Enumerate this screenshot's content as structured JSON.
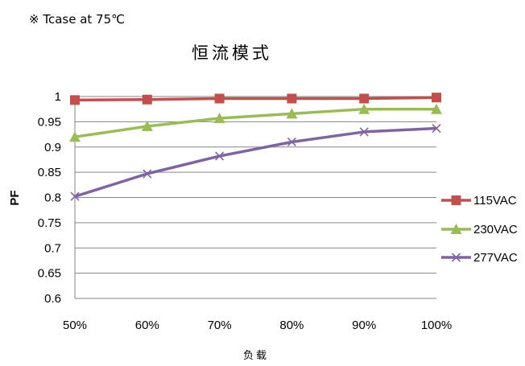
{
  "note": "※ Tcase at 75℃",
  "chart_data": {
    "type": "line",
    "title": "恒流模式",
    "xlabel": "负载",
    "ylabel": "PF",
    "categories": [
      "50%",
      "60%",
      "70%",
      "80%",
      "90%",
      "100%"
    ],
    "ylim": [
      0.6,
      1
    ],
    "yticks": [
      "0.6",
      "0.65",
      "0.7",
      "0.75",
      "0.8",
      "0.85",
      "0.9",
      "0.95",
      "1"
    ],
    "grid": true,
    "legend_position": "right",
    "series": [
      {
        "name": "115VAC",
        "values": [
          0.993,
          0.994,
          0.996,
          0.996,
          0.996,
          0.998
        ],
        "color": "#c0504d",
        "marker": "square"
      },
      {
        "name": "230VAC",
        "values": [
          0.92,
          0.941,
          0.957,
          0.966,
          0.975,
          0.975
        ],
        "color": "#9bbb59",
        "marker": "triangle"
      },
      {
        "name": "277VAC",
        "values": [
          0.802,
          0.847,
          0.882,
          0.91,
          0.93,
          0.937
        ],
        "color": "#8064a2",
        "marker": "x"
      }
    ]
  }
}
